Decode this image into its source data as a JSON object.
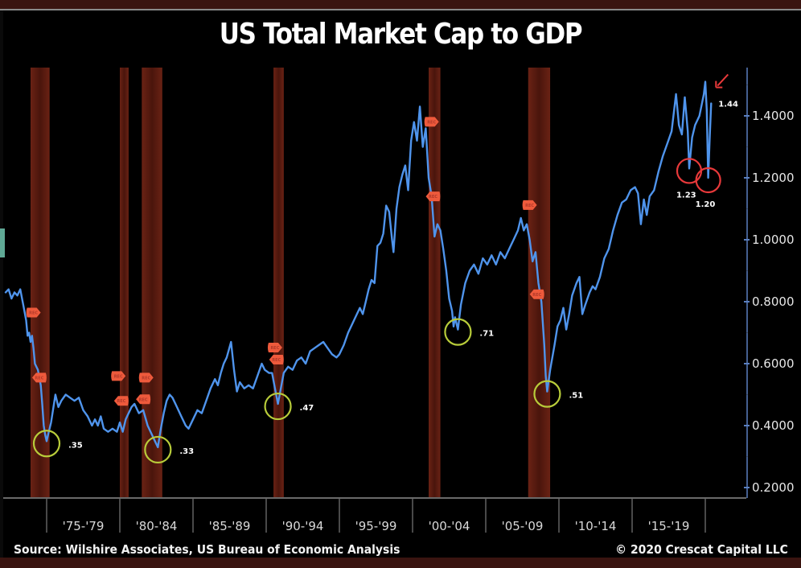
{
  "title": "US Total Market Cap to GDP",
  "footer": {
    "source": "Source: Wilshire Associates, US Bureau of Economic Analysis",
    "copyright": "© 2020 Crescat Capital LLC"
  },
  "colors": {
    "line": "#4f94ec",
    "recession_band": "#5a1a10",
    "recession_marker": "#ee5a3c",
    "trough_circle": "#b8cc3a",
    "recent_circle": "#e8393a",
    "arrow": "#e8393a",
    "axis": "#5a7fc0"
  },
  "chart_data": {
    "type": "line",
    "title": "US Total Market Cap to GDP",
    "xlabel": "",
    "ylabel": "",
    "ylim": [
      0.15,
      1.52
    ],
    "xlim": [
      1972.0,
      2021.3
    ],
    "yticks": [
      {
        "value": 0.2,
        "label": "0.2000"
      },
      {
        "value": 0.4,
        "label": "0.4000"
      },
      {
        "value": 0.6,
        "label": "0.6000"
      },
      {
        "value": 0.8,
        "label": "0.8000"
      },
      {
        "value": 1.0,
        "label": "1.0000"
      },
      {
        "value": 1.2,
        "label": "1.2000"
      },
      {
        "value": 1.4,
        "label": "1.4000"
      }
    ],
    "xperiods": [
      {
        "start": 1975,
        "end": 1980,
        "label": "'75-'79"
      },
      {
        "start": 1980,
        "end": 1985,
        "label": "'80-'84"
      },
      {
        "start": 1985,
        "end": 1990,
        "label": "'85-'89"
      },
      {
        "start": 1990,
        "end": 1995,
        "label": "'90-'94"
      },
      {
        "start": 1995,
        "end": 2000,
        "label": "'95-'99"
      },
      {
        "start": 2000,
        "end": 2005,
        "label": "'00-'04"
      },
      {
        "start": 2005,
        "end": 2010,
        "label": "'05-'09"
      },
      {
        "start": 2010,
        "end": 2015,
        "label": "'10-'14"
      },
      {
        "start": 2015,
        "end": 2020,
        "label": "'15-'19"
      }
    ],
    "grid": false,
    "legend": "none",
    "recessions": [
      {
        "start": 1973.9,
        "end": 1975.2
      },
      {
        "start": 1980.0,
        "end": 1980.6
      },
      {
        "start": 1981.5,
        "end": 1982.9
      },
      {
        "start": 1990.5,
        "end": 1991.2
      },
      {
        "start": 2001.1,
        "end": 2001.9
      },
      {
        "start": 2007.9,
        "end": 2009.4
      }
    ],
    "recession_markers": [
      {
        "x": 1974.1,
        "y": 0.765
      },
      {
        "x": 1974.5,
        "y": 0.555
      },
      {
        "x": 1979.9,
        "y": 0.56
      },
      {
        "x": 1980.1,
        "y": 0.48
      },
      {
        "x": 1981.8,
        "y": 0.555
      },
      {
        "x": 1981.6,
        "y": 0.485
      },
      {
        "x": 1990.6,
        "y": 0.652
      },
      {
        "x": 1990.7,
        "y": 0.613
      },
      {
        "x": 2001.3,
        "y": 1.381
      },
      {
        "x": 2001.4,
        "y": 1.14
      },
      {
        "x": 2008.0,
        "y": 1.112
      },
      {
        "x": 2008.5,
        "y": 0.824
      }
    ],
    "series": [
      {
        "name": "Market Cap / GDP",
        "points": [
          [
            1972.2,
            0.83
          ],
          [
            1972.4,
            0.84
          ],
          [
            1972.6,
            0.81
          ],
          [
            1972.8,
            0.83
          ],
          [
            1973.0,
            0.82
          ],
          [
            1973.2,
            0.84
          ],
          [
            1973.4,
            0.79
          ],
          [
            1973.6,
            0.74
          ],
          [
            1973.7,
            0.69
          ],
          [
            1973.8,
            0.7
          ],
          [
            1973.9,
            0.67
          ],
          [
            1974.0,
            0.69
          ],
          [
            1974.1,
            0.65
          ],
          [
            1974.2,
            0.6
          ],
          [
            1974.4,
            0.58
          ],
          [
            1974.6,
            0.53
          ],
          [
            1974.7,
            0.47
          ],
          [
            1974.8,
            0.4
          ],
          [
            1974.9,
            0.37
          ],
          [
            1975.0,
            0.35
          ],
          [
            1975.1,
            0.37
          ],
          [
            1975.3,
            0.41
          ],
          [
            1975.5,
            0.47
          ],
          [
            1975.6,
            0.5
          ],
          [
            1975.8,
            0.46
          ],
          [
            1976.0,
            0.48
          ],
          [
            1976.3,
            0.5
          ],
          [
            1976.6,
            0.49
          ],
          [
            1976.9,
            0.48
          ],
          [
            1977.2,
            0.49
          ],
          [
            1977.5,
            0.45
          ],
          [
            1977.8,
            0.43
          ],
          [
            1978.1,
            0.4
          ],
          [
            1978.3,
            0.42
          ],
          [
            1978.5,
            0.4
          ],
          [
            1978.7,
            0.43
          ],
          [
            1978.9,
            0.39
          ],
          [
            1979.2,
            0.38
          ],
          [
            1979.5,
            0.39
          ],
          [
            1979.8,
            0.38
          ],
          [
            1980.0,
            0.41
          ],
          [
            1980.2,
            0.38
          ],
          [
            1980.4,
            0.42
          ],
          [
            1980.6,
            0.44
          ],
          [
            1980.8,
            0.46
          ],
          [
            1981.0,
            0.47
          ],
          [
            1981.3,
            0.44
          ],
          [
            1981.6,
            0.45
          ],
          [
            1981.9,
            0.4
          ],
          [
            1982.2,
            0.37
          ],
          [
            1982.4,
            0.35
          ],
          [
            1982.6,
            0.33
          ],
          [
            1982.8,
            0.39
          ],
          [
            1983.0,
            0.44
          ],
          [
            1983.2,
            0.48
          ],
          [
            1983.4,
            0.5
          ],
          [
            1983.6,
            0.49
          ],
          [
            1983.9,
            0.46
          ],
          [
            1984.2,
            0.43
          ],
          [
            1984.5,
            0.4
          ],
          [
            1984.7,
            0.39
          ],
          [
            1985.0,
            0.42
          ],
          [
            1985.3,
            0.45
          ],
          [
            1985.6,
            0.44
          ],
          [
            1985.9,
            0.48
          ],
          [
            1986.2,
            0.52
          ],
          [
            1986.5,
            0.55
          ],
          [
            1986.7,
            0.53
          ],
          [
            1986.9,
            0.57
          ],
          [
            1987.1,
            0.6
          ],
          [
            1987.3,
            0.62
          ],
          [
            1987.6,
            0.67
          ],
          [
            1987.8,
            0.58
          ],
          [
            1988.0,
            0.51
          ],
          [
            1988.2,
            0.54
          ],
          [
            1988.5,
            0.52
          ],
          [
            1988.8,
            0.53
          ],
          [
            1989.1,
            0.52
          ],
          [
            1989.4,
            0.56
          ],
          [
            1989.7,
            0.6
          ],
          [
            1989.9,
            0.58
          ],
          [
            1990.2,
            0.57
          ],
          [
            1990.4,
            0.57
          ],
          [
            1990.6,
            0.52
          ],
          [
            1990.8,
            0.47
          ],
          [
            1991.0,
            0.52
          ],
          [
            1991.2,
            0.57
          ],
          [
            1991.5,
            0.59
          ],
          [
            1991.8,
            0.58
          ],
          [
            1992.1,
            0.61
          ],
          [
            1992.4,
            0.62
          ],
          [
            1992.7,
            0.6
          ],
          [
            1993.0,
            0.64
          ],
          [
            1993.3,
            0.65
          ],
          [
            1993.6,
            0.66
          ],
          [
            1993.9,
            0.67
          ],
          [
            1994.2,
            0.65
          ],
          [
            1994.5,
            0.63
          ],
          [
            1994.8,
            0.62
          ],
          [
            1995.0,
            0.63
          ],
          [
            1995.3,
            0.66
          ],
          [
            1995.6,
            0.7
          ],
          [
            1995.9,
            0.73
          ],
          [
            1996.2,
            0.76
          ],
          [
            1996.4,
            0.78
          ],
          [
            1996.6,
            0.76
          ],
          [
            1996.8,
            0.8
          ],
          [
            1997.0,
            0.84
          ],
          [
            1997.2,
            0.87
          ],
          [
            1997.4,
            0.86
          ],
          [
            1997.6,
            0.98
          ],
          [
            1997.8,
            0.99
          ],
          [
            1998.0,
            1.02
          ],
          [
            1998.2,
            1.11
          ],
          [
            1998.4,
            1.09
          ],
          [
            1998.6,
            1.0
          ],
          [
            1998.7,
            0.96
          ],
          [
            1998.9,
            1.1
          ],
          [
            1999.1,
            1.17
          ],
          [
            1999.3,
            1.21
          ],
          [
            1999.5,
            1.24
          ],
          [
            1999.7,
            1.16
          ],
          [
            1999.9,
            1.32
          ],
          [
            2000.1,
            1.38
          ],
          [
            2000.3,
            1.32
          ],
          [
            2000.5,
            1.43
          ],
          [
            2000.7,
            1.3
          ],
          [
            2000.9,
            1.36
          ],
          [
            2001.1,
            1.2
          ],
          [
            2001.3,
            1.14
          ],
          [
            2001.5,
            1.01
          ],
          [
            2001.7,
            1.05
          ],
          [
            2001.9,
            1.03
          ],
          [
            2002.1,
            0.97
          ],
          [
            2002.3,
            0.9
          ],
          [
            2002.5,
            0.81
          ],
          [
            2002.7,
            0.77
          ],
          [
            2002.8,
            0.72
          ],
          [
            2002.9,
            0.75
          ],
          [
            2003.1,
            0.71
          ],
          [
            2003.3,
            0.79
          ],
          [
            2003.6,
            0.86
          ],
          [
            2003.9,
            0.9
          ],
          [
            2004.2,
            0.92
          ],
          [
            2004.5,
            0.89
          ],
          [
            2004.8,
            0.94
          ],
          [
            2005.1,
            0.92
          ],
          [
            2005.4,
            0.95
          ],
          [
            2005.7,
            0.92
          ],
          [
            2006.0,
            0.96
          ],
          [
            2006.3,
            0.94
          ],
          [
            2006.6,
            0.97
          ],
          [
            2006.9,
            1.0
          ],
          [
            2007.2,
            1.03
          ],
          [
            2007.4,
            1.07
          ],
          [
            2007.6,
            1.03
          ],
          [
            2007.8,
            1.05
          ],
          [
            2008.0,
            1.0
          ],
          [
            2008.2,
            0.93
          ],
          [
            2008.4,
            0.96
          ],
          [
            2008.6,
            0.86
          ],
          [
            2008.8,
            0.8
          ],
          [
            2009.0,
            0.66
          ],
          [
            2009.1,
            0.56
          ],
          [
            2009.2,
            0.51
          ],
          [
            2009.4,
            0.58
          ],
          [
            2009.7,
            0.66
          ],
          [
            2009.9,
            0.72
          ],
          [
            2010.1,
            0.74
          ],
          [
            2010.3,
            0.78
          ],
          [
            2010.5,
            0.71
          ],
          [
            2010.7,
            0.76
          ],
          [
            2010.9,
            0.82
          ],
          [
            2011.2,
            0.86
          ],
          [
            2011.4,
            0.88
          ],
          [
            2011.6,
            0.76
          ],
          [
            2011.8,
            0.79
          ],
          [
            2012.1,
            0.83
          ],
          [
            2012.3,
            0.85
          ],
          [
            2012.5,
            0.84
          ],
          [
            2012.8,
            0.88
          ],
          [
            2013.1,
            0.94
          ],
          [
            2013.4,
            0.97
          ],
          [
            2013.7,
            1.03
          ],
          [
            2014.0,
            1.08
          ],
          [
            2014.3,
            1.12
          ],
          [
            2014.6,
            1.13
          ],
          [
            2014.9,
            1.16
          ],
          [
            2015.2,
            1.17
          ],
          [
            2015.4,
            1.15
          ],
          [
            2015.6,
            1.05
          ],
          [
            2015.8,
            1.13
          ],
          [
            2016.0,
            1.08
          ],
          [
            2016.2,
            1.14
          ],
          [
            2016.5,
            1.16
          ],
          [
            2016.8,
            1.22
          ],
          [
            2017.1,
            1.27
          ],
          [
            2017.4,
            1.31
          ],
          [
            2017.7,
            1.35
          ],
          [
            2018.0,
            1.47
          ],
          [
            2018.2,
            1.37
          ],
          [
            2018.4,
            1.34
          ],
          [
            2018.6,
            1.46
          ],
          [
            2018.8,
            1.35
          ],
          [
            2018.9,
            1.23
          ],
          [
            2019.1,
            1.33
          ],
          [
            2019.3,
            1.37
          ],
          [
            2019.6,
            1.4
          ],
          [
            2019.9,
            1.47
          ],
          [
            2020.0,
            1.51
          ],
          [
            2020.1,
            1.42
          ],
          [
            2020.2,
            1.2
          ],
          [
            2020.3,
            1.33
          ],
          [
            2020.4,
            1.44
          ]
        ]
      }
    ],
    "annotations": [
      {
        "text": ".35",
        "x": 1975.0,
        "y": 0.35,
        "kind": "trough"
      },
      {
        "text": ".33",
        "x": 1982.6,
        "y": 0.33,
        "kind": "trough"
      },
      {
        "text": ".47",
        "x": 1990.8,
        "y": 0.47,
        "kind": "trough"
      },
      {
        "text": ".71",
        "x": 2003.1,
        "y": 0.71,
        "kind": "trough"
      },
      {
        "text": ".51",
        "x": 2009.2,
        "y": 0.51,
        "kind": "trough"
      },
      {
        "text": "1.23",
        "x": 2018.9,
        "y": 1.23,
        "kind": "recent"
      },
      {
        "text": "1.20",
        "x": 2020.2,
        "y": 1.2,
        "kind": "recent"
      },
      {
        "text": "1.44",
        "x": 2020.4,
        "y": 1.44,
        "kind": "current"
      }
    ]
  }
}
